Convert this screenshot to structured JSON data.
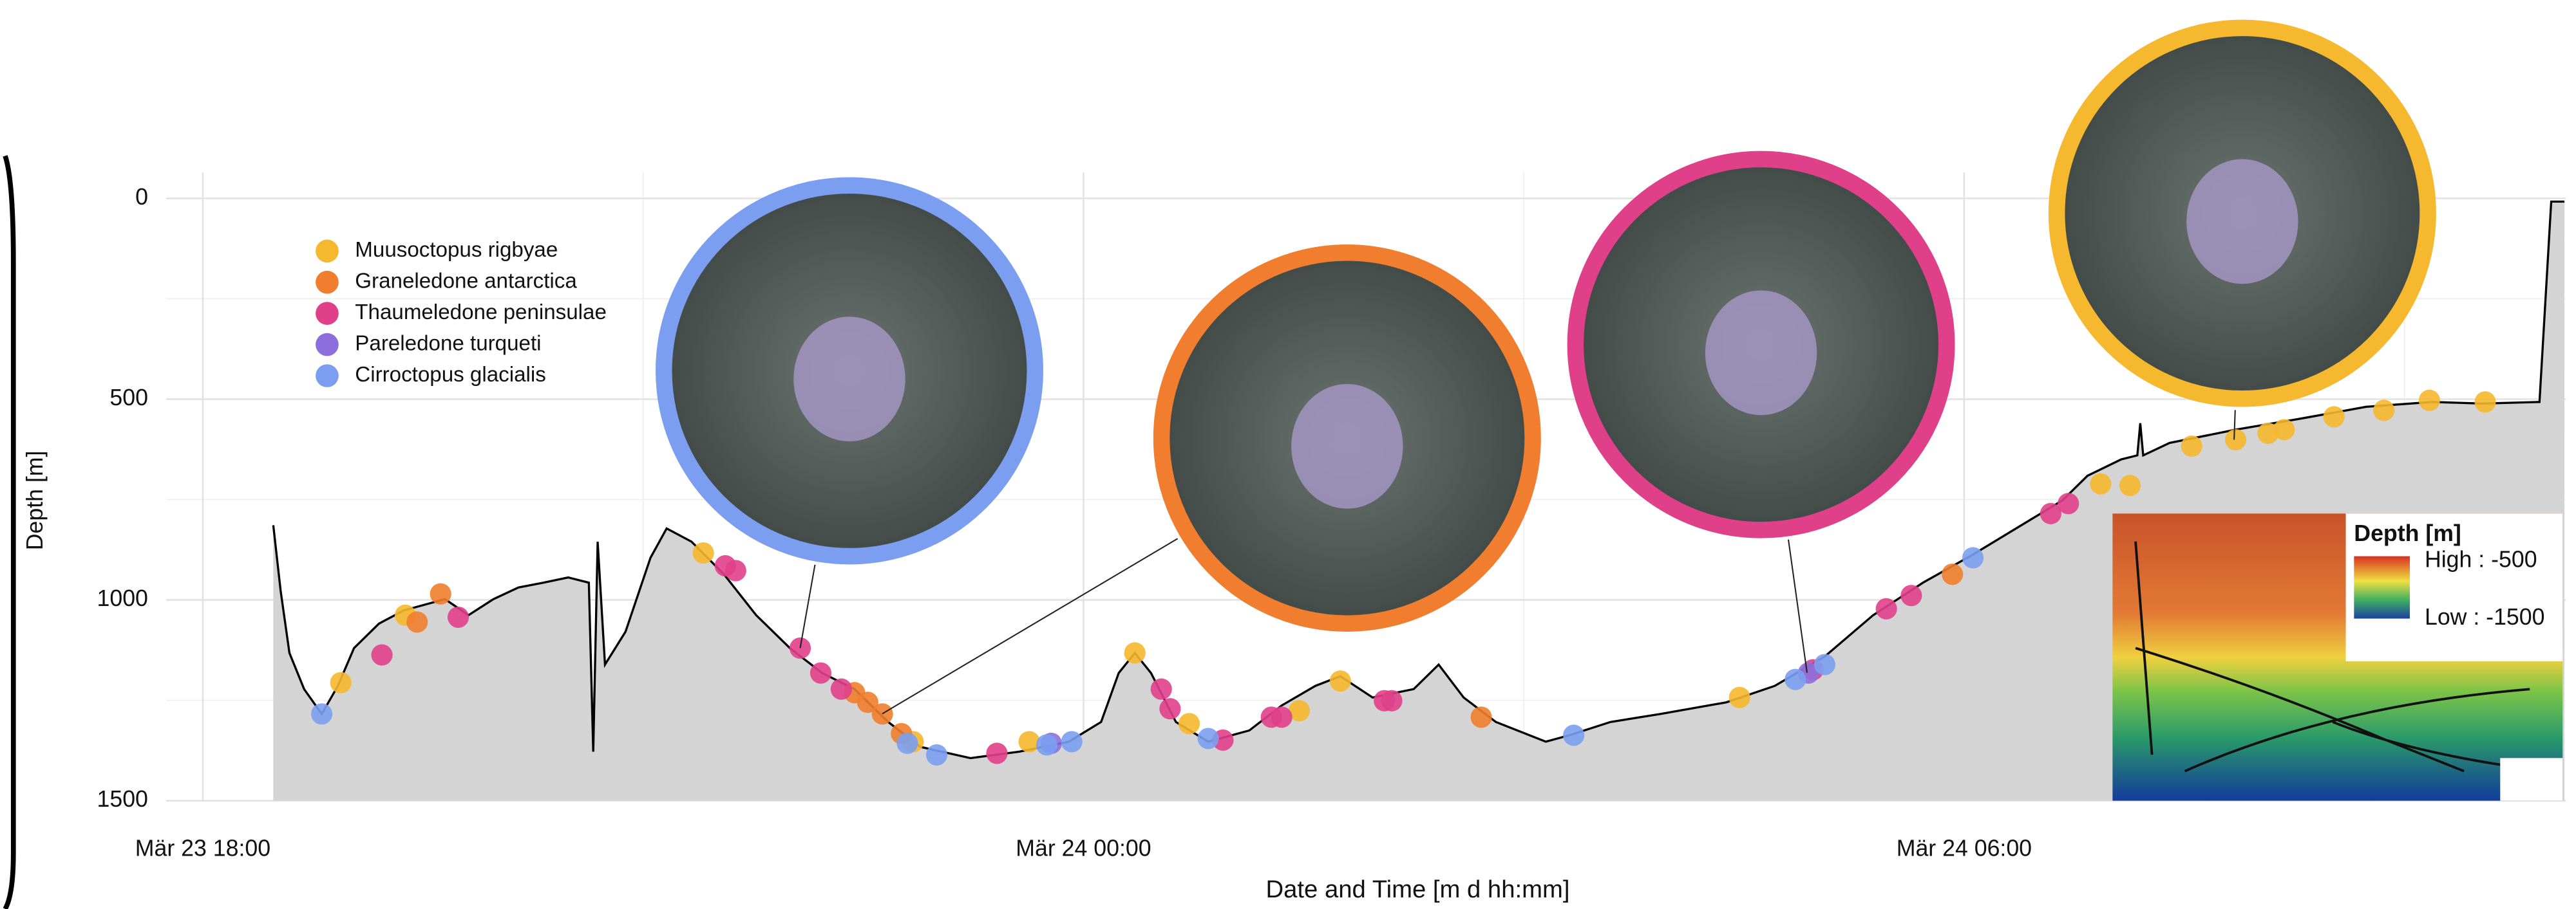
{
  "chart_data": {
    "type": "area",
    "x_label": "Date and Time [m d hh:mm]",
    "y_label": "Depth [m]",
    "xlim": [
      -0.25,
      16.1
    ],
    "ylim": [
      1500,
      -65
    ],
    "xticks": [
      {
        "value": 0,
        "label": "Mär 23 18:00"
      },
      {
        "value": 6,
        "label": "Mär 24 00:00"
      },
      {
        "value": 12,
        "label": "Mär 24 06:00"
      }
    ],
    "xminor": [
      3,
      9,
      15
    ],
    "yticks": [
      0,
      500,
      1000,
      1500
    ],
    "yminor": [
      250,
      750,
      1250
    ],
    "grid": true,
    "legend": "upper left",
    "profile": {
      "fill": "#d4d4d4",
      "line_color": "#000000",
      "x": [
        0.48,
        0.53,
        0.59,
        0.69,
        0.81,
        0.92,
        1.03,
        1.2,
        1.37,
        1.53,
        1.65,
        1.81,
        1.98,
        2.15,
        2.32,
        2.49,
        2.63,
        2.66,
        2.69,
        2.74,
        2.88,
        3.05,
        3.16,
        3.33,
        3.55,
        3.77,
        4.0,
        4.22,
        4.44,
        4.67,
        4.89,
        5.23,
        5.56,
        5.9,
        6.12,
        6.24,
        6.35,
        6.46,
        6.63,
        6.85,
        7.13,
        7.35,
        7.58,
        7.75,
        7.97,
        8.25,
        8.42,
        8.59,
        8.81,
        9.15,
        9.31,
        9.59,
        9.93,
        10.38,
        10.71,
        11.05,
        11.38,
        11.72,
        12.06,
        12.39,
        12.67,
        12.84,
        13.07,
        13.18,
        13.2,
        13.22,
        13.4,
        13.85,
        14.3,
        14.74,
        15.19,
        15.53,
        15.92,
        16.0,
        16.09
      ],
      "values": [
        814,
        977,
        1132,
        1222,
        1284,
        1214,
        1120,
        1059,
        1026,
        1010,
        998,
        1038,
        998,
        969,
        957,
        944,
        957,
        1378,
        855,
        1161,
        1079,
        895,
        822,
        855,
        936,
        1038,
        1120,
        1182,
        1222,
        1304,
        1366,
        1394,
        1378,
        1353,
        1304,
        1182,
        1132,
        1182,
        1304,
        1353,
        1325,
        1263,
        1214,
        1190,
        1243,
        1222,
        1161,
        1243,
        1304,
        1353,
        1337,
        1304,
        1284,
        1255,
        1214,
        1141,
        1038,
        957,
        887,
        814,
        752,
        691,
        650,
        640,
        560,
        640,
        609,
        576,
        548,
        519,
        507,
        511,
        507,
        8,
        8
      ]
    },
    "series": [
      {
        "name": "Muusoctopus rigbyae",
        "color": "#f5b82e",
        "x": [
          0.94,
          1.38,
          3.41,
          4.84,
          5.63,
          6.35,
          6.72,
          7.47,
          7.75,
          10.47,
          12.93,
          13.13,
          13.55,
          13.85,
          14.07,
          14.18,
          14.52,
          14.86,
          15.17,
          15.55
        ],
        "values": [
          1206,
          1038,
          883,
          1353,
          1353,
          1132,
          1308,
          1276,
          1202,
          1243,
          711,
          715,
          617,
          601,
          585,
          576,
          544,
          528,
          503,
          507
        ]
      },
      {
        "name": "Graneledone antarctica",
        "color": "#f07e2e",
        "x": [
          1.46,
          1.62,
          4.44,
          4.53,
          4.63,
          4.76,
          8.71,
          11.92
        ],
        "values": [
          1055,
          985,
          1231,
          1255,
          1284,
          1333,
          1292,
          936
        ]
      },
      {
        "name": "Thaumeledone peninsulae",
        "color": "#e0408a",
        "x": [
          1.22,
          1.74,
          3.56,
          3.63,
          4.07,
          4.21,
          4.35,
          5.41,
          6.53,
          6.59,
          6.95,
          7.28,
          7.35,
          8.05,
          8.1,
          10.97,
          11.47,
          11.64,
          12.59,
          12.71
        ],
        "values": [
          1137,
          1043,
          915,
          927,
          1120,
          1182,
          1222,
          1382,
          1222,
          1271,
          1349,
          1292,
          1292,
          1251,
          1251,
          1174,
          1022,
          989,
          785,
          760
        ]
      },
      {
        "name": "Pareledone turqueti",
        "color": "#8c6fdc",
        "x": [
          5.78,
          10.94
        ],
        "values": [
          1357,
          1182
        ]
      },
      {
        "name": "Cirroctopus glacialis",
        "color": "#7b9ef0",
        "x": [
          0.81,
          4.8,
          5.0,
          5.75,
          5.92,
          6.85,
          9.34,
          10.85,
          11.05,
          12.06
        ],
        "values": [
          1284,
          1357,
          1386,
          1361,
          1353,
          1345,
          1337,
          1198,
          1161,
          895
        ]
      }
    ],
    "inset": {
      "title": "Depth [m]",
      "high": "High : -500",
      "low": "Low : -1500"
    }
  }
}
